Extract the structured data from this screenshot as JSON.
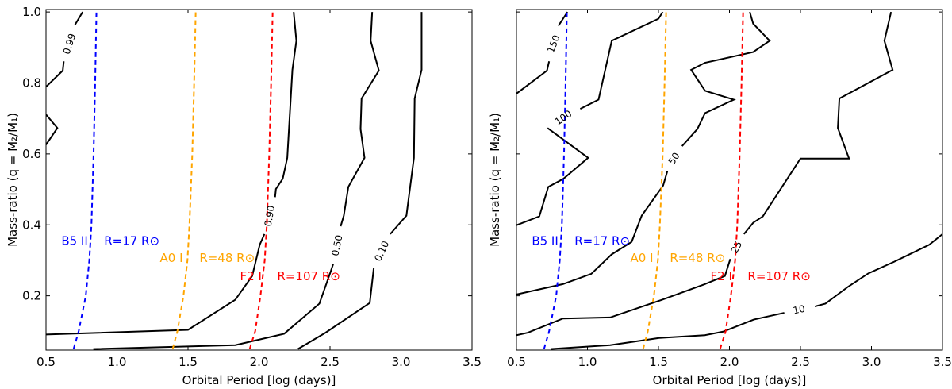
{
  "chart_data": [
    {
      "type": "line",
      "panel": "left",
      "xlabel": "Orbital Period [log (days)]",
      "ylabel": "Mass-ratio (q = M₂/M₁)",
      "xlim": [
        0.5,
        3.5
      ],
      "ylim": [
        0.047,
        1.007
      ],
      "xticks": [
        "0.5",
        "1.0",
        "1.5",
        "2.0",
        "2.5",
        "3.0",
        "3.5"
      ],
      "yticks": [
        "0.2",
        "0.4",
        "0.6",
        "0.8",
        "1.0"
      ],
      "show_ytick_labels": true,
      "contours": [
        {
          "level": "0.99",
          "label_at": [
            0.665,
            0.91
          ],
          "segments": [
            [
              [
                0.5,
                0.789
              ],
              [
                0.618,
                0.835
              ],
              [
                0.625,
                0.861
              ]
            ],
            [
              [
                0.704,
                0.964
              ],
              [
                0.758,
                1.0
              ]
            ],
            [
              [
                0.5,
                0.711
              ],
              [
                0.58,
                0.673
              ],
              [
                0.5,
                0.626
              ]
            ]
          ]
        },
        {
          "level": "0.90",
          "label_at": [
            2.075,
            0.425
          ],
          "segments": [
            [
              [
                2.244,
                1.0
              ],
              [
                2.263,
                0.919
              ],
              [
                2.235,
                0.837
              ],
              [
                2.199,
                0.589
              ],
              [
                2.167,
                0.53
              ],
              [
                2.119,
                0.501
              ],
              [
                2.113,
                0.478
              ]
            ],
            [
              [
                2.038,
                0.374
              ],
              [
                2.005,
                0.344
              ],
              [
                1.952,
                0.256
              ],
              [
                1.833,
                0.189
              ],
              [
                1.5,
                0.104
              ],
              [
                0.5,
                0.091
              ]
            ]
          ]
        },
        {
          "level": "0.50",
          "label_at": [
            2.55,
            0.342
          ],
          "segments": [
            [
              [
                0.833,
                0.05
              ],
              [
                1.833,
                0.061
              ],
              [
                1.962,
                0.073
              ],
              [
                2.177,
                0.093
              ],
              [
                2.425,
                0.178
              ],
              [
                2.5,
                0.263
              ],
              [
                2.522,
                0.289
              ]
            ],
            [
              [
                2.575,
                0.396
              ],
              [
                2.597,
                0.426
              ],
              [
                2.629,
                0.507
              ],
              [
                2.743,
                0.589
              ],
              [
                2.715,
                0.67
              ],
              [
                2.722,
                0.756
              ],
              [
                2.844,
                0.835
              ],
              [
                2.786,
                0.919
              ],
              [
                2.797,
                1.0
              ]
            ]
          ]
        },
        {
          "level": "0.10",
          "label_at": [
            2.865,
            0.326
          ],
          "segments": [
            [
              [
                2.274,
                0.05
              ],
              [
                2.468,
                0.096
              ],
              [
                2.78,
                0.18
              ],
              [
                2.808,
                0.278
              ]
            ],
            [
              [
                2.924,
                0.374
              ],
              [
                3.038,
                0.426
              ],
              [
                3.091,
                0.589
              ],
              [
                3.096,
                0.756
              ],
              [
                3.145,
                0.837
              ],
              [
                3.145,
                1.0
              ]
            ]
          ]
        }
      ],
      "radius_lines": [
        {
          "star": "B5 II",
          "radius_label": "R=17 R⊙",
          "color": "#0000ff",
          "star_label_at": [
            0.608,
            0.355
          ],
          "radius_label_at": [
            0.909,
            0.355
          ],
          "points": [
            [
              0.694,
              0.05
            ],
            [
              0.73,
              0.1
            ],
            [
              0.78,
              0.2
            ],
            [
              0.805,
              0.3
            ],
            [
              0.82,
              0.4
            ],
            [
              0.835,
              0.6
            ],
            [
              0.846,
              0.8
            ],
            [
              0.855,
              1.0
            ]
          ]
        },
        {
          "star": "A0 I",
          "radius_label": "R=48 R⊙",
          "color": "#ffa500",
          "star_label_at": [
            1.302,
            0.307
          ],
          "radius_label_at": [
            1.58,
            0.307
          ],
          "points": [
            [
              1.392,
              0.05
            ],
            [
              1.425,
              0.1
            ],
            [
              1.468,
              0.2
            ],
            [
              1.496,
              0.3
            ],
            [
              1.51,
              0.4
            ],
            [
              1.53,
              0.6
            ],
            [
              1.543,
              0.8
            ],
            [
              1.554,
              1.0
            ]
          ]
        },
        {
          "star": "F2 I",
          "radius_label": "R=107 R⊙",
          "color": "#ff0000",
          "star_label_at": [
            1.866,
            0.255
          ],
          "radius_label_at": [
            2.128,
            0.255
          ],
          "points": [
            [
              1.934,
              0.05
            ],
            [
              1.973,
              0.1
            ],
            [
              2.01,
              0.2
            ],
            [
              2.04,
              0.3
            ],
            [
              2.055,
              0.4
            ],
            [
              2.072,
              0.6
            ],
            [
              2.085,
              0.8
            ],
            [
              2.096,
              1.0
            ]
          ]
        }
      ]
    },
    {
      "type": "line",
      "panel": "right",
      "xlabel": "Orbital Period [log (days)]",
      "ylabel": "Mass-ratio (q = M₂/M₁)",
      "xlim": [
        0.5,
        3.5
      ],
      "ylim": [
        0.047,
        1.007
      ],
      "xticks": [
        "0.5",
        "1.0",
        "1.5",
        "2.0",
        "2.5",
        "3.0",
        "3.5"
      ],
      "yticks": [
        "0.2",
        "0.4",
        "0.6",
        "0.8",
        "1.0"
      ],
      "show_ytick_labels": false,
      "contours": [
        {
          "level": "150",
          "label_at": [
            0.762,
            0.91
          ],
          "segments": [
            [
              [
                0.5,
                0.77
              ],
              [
                0.715,
                0.835
              ],
              [
                0.73,
                0.861
              ]
            ],
            [
              [
                0.795,
                0.961
              ],
              [
                0.828,
                0.981
              ],
              [
                0.859,
                1.0
              ]
            ]
          ]
        },
        {
          "level": "100",
          "label_at": [
            0.83,
            0.702
          ],
          "segments": [
            [
              [
                0.949,
                0.727
              ],
              [
                1.078,
                0.753
              ],
              [
                1.171,
                0.919
              ],
              [
                1.5,
                0.981
              ],
              [
                1.53,
                1.0
              ]
            ],
            [
              [
                0.719,
                0.673
              ],
              [
                1.005,
                0.589
              ],
              [
                0.831,
                0.53
              ],
              [
                0.724,
                0.507
              ],
              [
                0.661,
                0.424
              ],
              [
                0.5,
                0.399
              ]
            ]
          ]
        },
        {
          "level": "50",
          "label_at": [
            1.61,
            0.587
          ],
          "segments": [
            [
              [
                0.5,
                0.204
              ],
              [
                0.827,
                0.233
              ],
              [
                1.027,
                0.262
              ],
              [
                1.171,
                0.317
              ],
              [
                1.311,
                0.352
              ],
              [
                1.382,
                0.426
              ],
              [
                1.533,
                0.511
              ],
              [
                1.563,
                0.552
              ]
            ],
            [
              [
                1.666,
                0.622
              ],
              [
                1.774,
                0.67
              ],
              [
                1.828,
                0.715
              ],
              [
                2.031,
                0.753
              ],
              [
                1.828,
                0.778
              ],
              [
                1.73,
                0.837
              ],
              [
                1.828,
                0.857
              ],
              [
                2.167,
                0.887
              ],
              [
                2.283,
                0.919
              ],
              [
                2.167,
                0.967
              ],
              [
                2.143,
                1.0
              ]
            ]
          ]
        },
        {
          "level": "25",
          "label_at": [
            2.05,
            0.337
          ],
          "segments": [
            [
              [
                0.5,
                0.089
              ],
              [
                0.58,
                0.096
              ],
              [
                0.827,
                0.136
              ],
              [
                1.16,
                0.139
              ],
              [
                1.526,
                0.189
              ],
              [
                1.827,
                0.233
              ],
              [
                1.968,
                0.256
              ],
              [
                2.006,
                0.304
              ]
            ],
            [
              [
                2.102,
                0.374
              ],
              [
                2.167,
                0.406
              ],
              [
                2.235,
                0.424
              ],
              [
                2.5,
                0.587
              ],
              [
                2.842,
                0.587
              ],
              [
                2.763,
                0.673
              ],
              [
                2.774,
                0.756
              ],
              [
                3.149,
                0.837
              ],
              [
                3.091,
                0.919
              ],
              [
                3.138,
                1.0
              ]
            ]
          ]
        },
        {
          "level": "10",
          "label_at": [
            2.49,
            0.161
          ],
          "segments": [
            [
              [
                0.741,
                0.05
              ],
              [
                1.16,
                0.061
              ],
              [
                1.504,
                0.081
              ],
              [
                1.827,
                0.089
              ],
              [
                1.955,
                0.099
              ],
              [
                2.171,
                0.133
              ],
              [
                2.386,
                0.152
              ]
            ],
            [
              [
                2.601,
                0.17
              ],
              [
                2.676,
                0.178
              ],
              [
                2.837,
                0.226
              ],
              [
                2.977,
                0.263
              ],
              [
                3.159,
                0.296
              ],
              [
                3.407,
                0.344
              ],
              [
                3.5,
                0.374
              ]
            ]
          ]
        }
      ],
      "radius_lines": [
        {
          "star": "B5 II",
          "radius_label": "R=17 R⊙",
          "color": "#0000ff",
          "star_label_at": [
            0.608,
            0.355
          ],
          "radius_label_at": [
            0.909,
            0.355
          ],
          "points": [
            [
              0.694,
              0.05
            ],
            [
              0.73,
              0.1
            ],
            [
              0.78,
              0.2
            ],
            [
              0.805,
              0.3
            ],
            [
              0.82,
              0.4
            ],
            [
              0.835,
              0.6
            ],
            [
              0.846,
              0.8
            ],
            [
              0.855,
              1.0
            ]
          ]
        },
        {
          "star": "A0 I",
          "radius_label": "R=48 R⊙",
          "color": "#ffa500",
          "star_label_at": [
            1.302,
            0.307
          ],
          "radius_label_at": [
            1.58,
            0.307
          ],
          "points": [
            [
              1.392,
              0.05
            ],
            [
              1.425,
              0.1
            ],
            [
              1.468,
              0.2
            ],
            [
              1.496,
              0.3
            ],
            [
              1.51,
              0.4
            ],
            [
              1.53,
              0.6
            ],
            [
              1.543,
              0.8
            ],
            [
              1.554,
              1.0
            ]
          ]
        },
        {
          "star": "F2 I",
          "radius_label": "R=107 R⊙",
          "color": "#ff0000",
          "star_label_at": [
            1.866,
            0.255
          ],
          "radius_label_at": [
            2.128,
            0.255
          ],
          "points": [
            [
              1.934,
              0.05
            ],
            [
              1.973,
              0.1
            ],
            [
              2.01,
              0.2
            ],
            [
              2.04,
              0.3
            ],
            [
              2.055,
              0.4
            ],
            [
              2.072,
              0.6
            ],
            [
              2.085,
              0.8
            ],
            [
              2.096,
              1.0
            ]
          ]
        }
      ]
    }
  ]
}
